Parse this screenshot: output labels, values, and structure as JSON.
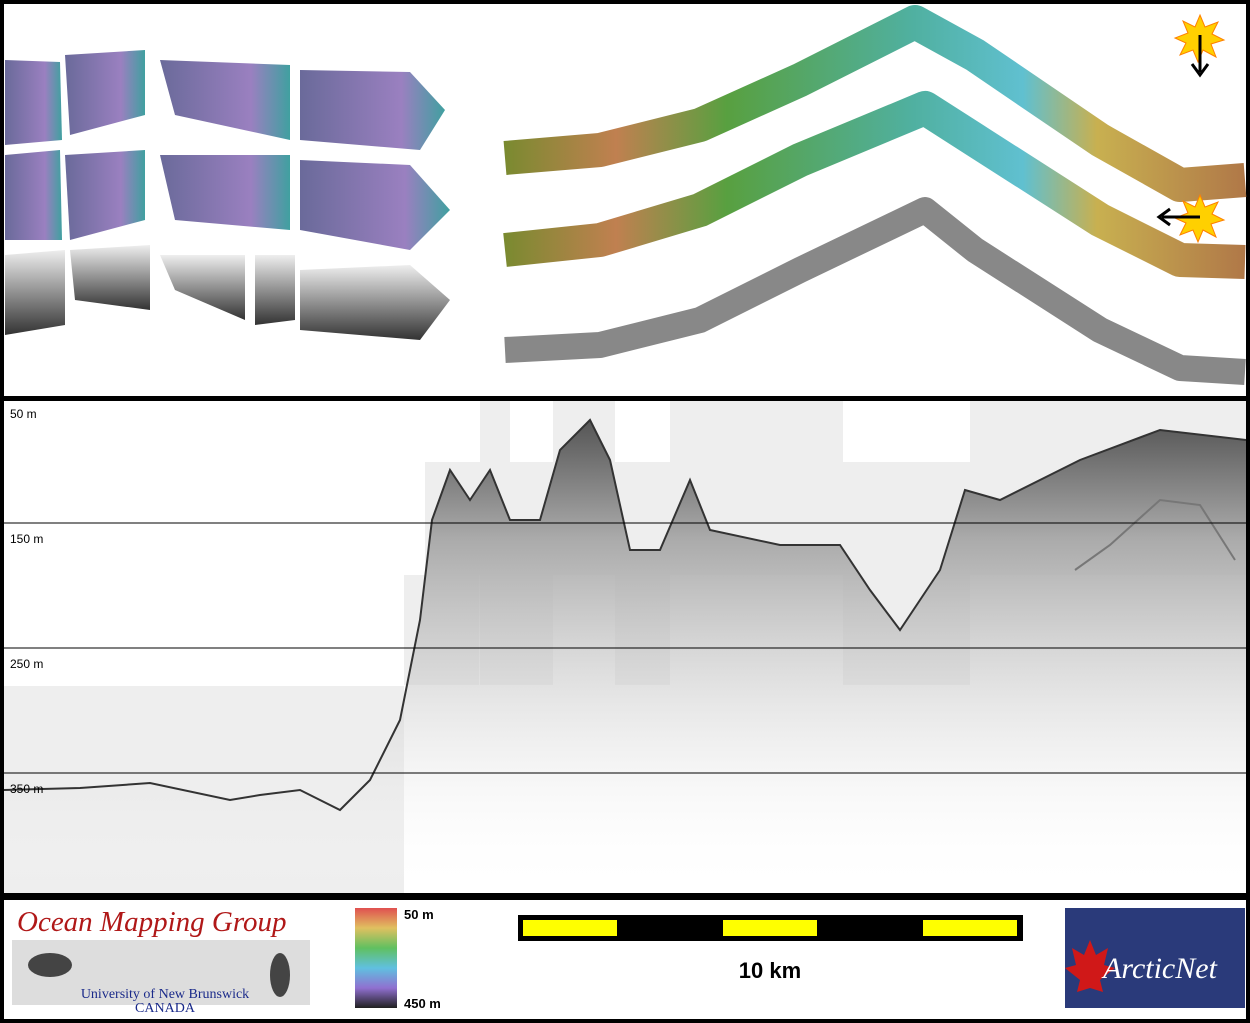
{
  "profile": {
    "depth_labels": [
      "50 m",
      "150 m",
      "250 m",
      "350 m"
    ]
  },
  "footer": {
    "group": {
      "title": "Ocean Mapping Group",
      "university": "University of New Brunswick",
      "country": "CANADA"
    },
    "colorbar": {
      "top_label": "50 m",
      "bottom_label": "450 m"
    },
    "scale_bar": {
      "label": "10 km"
    },
    "logo": {
      "text": "ArcticNet"
    }
  }
}
